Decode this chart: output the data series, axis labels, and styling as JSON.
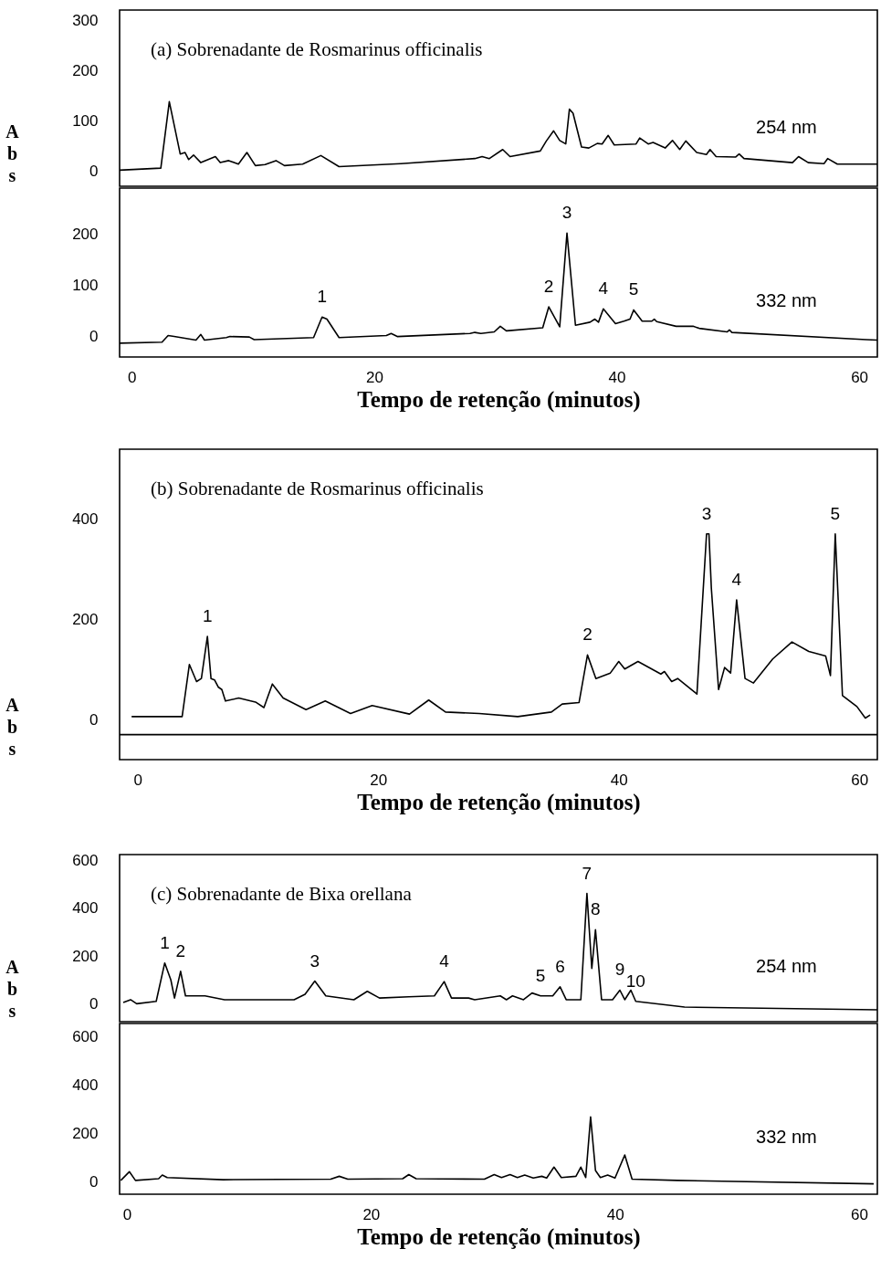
{
  "chart_data": [
    {
      "type": "line",
      "title": "(a) Sobrenadante de Rosmarinus officinalis",
      "ylabel": "Abs",
      "xlim": [
        -1,
        61.5
      ],
      "ylim": [
        -30,
        320
      ],
      "xticks": [
        0,
        20,
        40,
        60
      ],
      "yticks": [
        0,
        100,
        200,
        300
      ],
      "tick_labels": "y",
      "x": [
        -1,
        2.4,
        3.1,
        4.0,
        4.4,
        4.7,
        5.1,
        5.7,
        6.9,
        7.3,
        8.0,
        8.8,
        9.5,
        10.2,
        11.0,
        11.9,
        12.6,
        14.1,
        15.6,
        17.1,
        22.2,
        28.3,
        28.9,
        29.5,
        30.6,
        31.2,
        33.7,
        34.2,
        34.8,
        35.3,
        35.8,
        36.1,
        36.4,
        37.1,
        37.7,
        38.4,
        38.8,
        39.3,
        39.8,
        41.6,
        41.9,
        42.6,
        43.0,
        44.0,
        44.6,
        45.2,
        45.7,
        46.6,
        47.4,
        47.7,
        48.2,
        49.8,
        50.1,
        50.5,
        54.5,
        55.0,
        55.8,
        57.1,
        57.4,
        58.2,
        61.5
      ],
      "series": [
        {
          "name": "254 nm",
          "color": "#000000",
          "values": [
            2,
            6,
            138,
            34,
            37,
            23,
            32,
            17,
            29,
            17,
            21,
            14,
            37,
            11,
            13,
            21,
            11,
            14,
            31,
            9,
            15,
            25,
            29,
            25,
            43,
            29,
            40,
            60,
            80,
            61,
            54,
            123,
            115,
            48,
            46,
            55,
            54,
            71,
            52,
            54,
            66,
            54,
            57,
            46,
            61,
            43,
            60,
            37,
            33,
            43,
            29,
            28,
            34,
            25,
            17,
            29,
            17,
            15,
            25,
            14,
            14
          ]
        }
      ]
    },
    {
      "type": "line",
      "xlabel": "Tempo de retenção (minutos)",
      "xlim": [
        -1,
        61.5
      ],
      "ylim": [
        -40,
        290
      ],
      "xticks": [
        0,
        20,
        40,
        60
      ],
      "yticks": [
        0,
        100,
        200
      ],
      "x": [
        -1,
        2.5,
        3.0,
        3.5,
        5.3,
        5.7,
        6.0,
        7.8,
        8.1,
        9.7,
        10.1,
        15.0,
        15.7,
        16.1,
        17.1,
        21.0,
        21.4,
        21.9,
        27.9,
        28.3,
        28.8,
        29.9,
        30.4,
        30.9,
        33.9,
        34.4,
        35.3,
        35.9,
        36.6,
        37.8,
        38.2,
        38.5,
        38.9,
        39.9,
        40.6,
        41.1,
        41.4,
        42.1,
        42.9,
        43.1,
        43.3,
        44.9,
        46.3,
        46.8,
        49.1,
        49.3,
        49.5,
        60.6,
        61.5
      ],
      "series": [
        {
          "name": "332 nm",
          "color": "#000000",
          "values": [
            -13,
            -11,
            2,
            0,
            -7,
            4,
            -7,
            -2,
            0,
            -1,
            -6,
            -2,
            38,
            34,
            -2,
            2,
            6,
            0,
            6,
            8,
            6,
            9,
            20,
            11,
            17,
            58,
            19,
            202,
            22,
            28,
            34,
            28,
            54,
            25,
            30,
            34,
            52,
            30,
            30,
            34,
            29,
            20,
            20,
            16,
            9,
            13,
            8,
            -6,
            -7
          ]
        }
      ],
      "annotations": [
        {
          "text": "1",
          "x": 15.7,
          "y": 38
        },
        {
          "text": "2",
          "x": 34.4,
          "y": 58
        },
        {
          "text": "3",
          "x": 35.9,
          "y": 202
        },
        {
          "text": "4",
          "x": 38.9,
          "y": 54
        },
        {
          "text": "5",
          "x": 41.4,
          "y": 52
        }
      ]
    },
    {
      "type": "line",
      "title": "(b) Sobrenadante de Rosmarinus officinalis",
      "ylabel": "Abs",
      "xlabel": "Tempo de retenção (minutos)",
      "xlim": [
        -1.5,
        61.5
      ],
      "ylim": [
        -80,
        540
      ],
      "xticks": [
        0,
        20,
        40,
        60
      ],
      "yticks": [
        0,
        200,
        400
      ],
      "x": [
        -0.5,
        3.7,
        4.3,
        4.9,
        5.3,
        5.8,
        6.1,
        6.4,
        6.7,
        7.0,
        7.3,
        8.4,
        9.8,
        10.5,
        11.2,
        12.1,
        14.0,
        15.6,
        17.7,
        19.5,
        22.6,
        24.2,
        25.6,
        28.4,
        31.6,
        34.4,
        35.3,
        36.7,
        37.4,
        38.1,
        39.3,
        40.0,
        40.5,
        41.6,
        43.5,
        43.8,
        44.4,
        44.9,
        46.5,
        47.3,
        47.5,
        47.7,
        48.3,
        48.8,
        49.3,
        49.8,
        50.5,
        51.2,
        52.8,
        54.4,
        55.8,
        57.2,
        57.6,
        58.0,
        58.6,
        59.8,
        60.5,
        60.9
      ],
      "series": [
        {
          "color": "#000000",
          "values": [
            6,
            6,
            110,
            76,
            82,
            166,
            82,
            79,
            65,
            60,
            37,
            43,
            35,
            24,
            71,
            43,
            20,
            37,
            12,
            28,
            11,
            39,
            15,
            12,
            6,
            15,
            31,
            34,
            129,
            82,
            93,
            116,
            101,
            116,
            91,
            96,
            76,
            82,
            51,
            371,
            371,
            262,
            60,
            104,
            93,
            239,
            82,
            73,
            121,
            155,
            136,
            127,
            88,
            371,
            48,
            26,
            3,
            9
          ]
        }
      ],
      "ref_lines": [
        {
          "axis": "y",
          "value": -30,
          "color": "#000000"
        }
      ],
      "annotations": [
        {
          "text": "1",
          "x": 5.8,
          "y": 166
        },
        {
          "text": "2",
          "x": 37.4,
          "y": 129
        },
        {
          "text": "3",
          "x": 47.3,
          "y": 371
        },
        {
          "text": "4",
          "x": 49.8,
          "y": 239
        },
        {
          "text": "5",
          "x": 58.0,
          "y": 371
        }
      ]
    },
    {
      "type": "line",
      "title": "(c) Sobrenadante de Bixa orellana",
      "ylabel": "Abs",
      "xlim": [
        -0.6,
        61.5
      ],
      "ylim": [
        -75,
        625
      ],
      "xticks": [
        0,
        20,
        40,
        60
      ],
      "yticks": [
        0,
        200,
        400,
        600
      ],
      "tick_labels": "y",
      "x": [
        -0.3,
        0.3,
        0.8,
        2.4,
        3.1,
        3.6,
        3.9,
        4.4,
        4.8,
        6.4,
        8.0,
        10.4,
        13.7,
        14.6,
        15.4,
        16.3,
        18.6,
        19.7,
        20.7,
        23.1,
        25.2,
        26.0,
        26.6,
        28.0,
        28.5,
        30.6,
        31.1,
        31.6,
        32.5,
        33.2,
        33.9,
        34.9,
        35.5,
        36.0,
        37.2,
        37.7,
        38.1,
        38.4,
        38.9,
        39.8,
        40.4,
        40.8,
        41.3,
        41.7,
        45.7,
        61.5
      ],
      "series": [
        {
          "name": "254 nm",
          "color": "#000000",
          "values": [
            5,
            17,
            0,
            10,
            171,
            100,
            24,
            136,
            33,
            33,
            17,
            17,
            17,
            40,
            95,
            33,
            17,
            52,
            24,
            29,
            33,
            93,
            24,
            24,
            17,
            33,
            17,
            33,
            17,
            45,
            33,
            33,
            71,
            17,
            17,
            462,
            148,
            310,
            17,
            17,
            57,
            17,
            57,
            10,
            -14,
            -25
          ]
        }
      ],
      "annotations": [
        {
          "text": "1",
          "x": 3.1,
          "y": 171
        },
        {
          "text": "2",
          "x": 4.4,
          "y": 136
        },
        {
          "text": "3",
          "x": 15.4,
          "y": 95
        },
        {
          "text": "4",
          "x": 26.0,
          "y": 93
        },
        {
          "text": "5",
          "x": 33.9,
          "y": 33
        },
        {
          "text": "6",
          "x": 35.5,
          "y": 71
        },
        {
          "text": "7",
          "x": 37.7,
          "y": 462
        },
        {
          "text": "8",
          "x": 38.4,
          "y": 310
        },
        {
          "text": "9",
          "x": 40.4,
          "y": 57
        },
        {
          "text": "10",
          "x": 41.7,
          "y": 10
        }
      ]
    },
    {
      "type": "line",
      "xlabel": "Tempo de retenção (minutos)",
      "xlim": [
        -0.6,
        61.5
      ],
      "ylim": [
        -50,
        655
      ],
      "xticks": [
        0,
        20,
        40,
        60
      ],
      "yticks": [
        0,
        200,
        400,
        600
      ],
      "x": [
        -0.5,
        0.2,
        0.7,
        2.6,
        2.9,
        3.3,
        7.9,
        16.7,
        17.4,
        18.1,
        22.6,
        23.1,
        23.7,
        29.3,
        30.1,
        30.7,
        31.4,
        32.0,
        32.6,
        33.3,
        34.0,
        34.4,
        35.0,
        35.6,
        36.8,
        37.2,
        37.6,
        38.0,
        38.4,
        38.8,
        39.4,
        40.0,
        40.8,
        41.4,
        45.1,
        61.2
      ],
      "series": [
        {
          "name": "332 nm",
          "color": "#000000",
          "values": [
            7,
            43,
            7,
            14,
            29,
            19,
            10,
            12,
            24,
            12,
            14,
            31,
            14,
            12,
            31,
            19,
            31,
            19,
            29,
            17,
            24,
            17,
            62,
            19,
            24,
            62,
            19,
            269,
            48,
            19,
            29,
            17,
            112,
            12,
            7,
            -7
          ]
        }
      ]
    }
  ]
}
